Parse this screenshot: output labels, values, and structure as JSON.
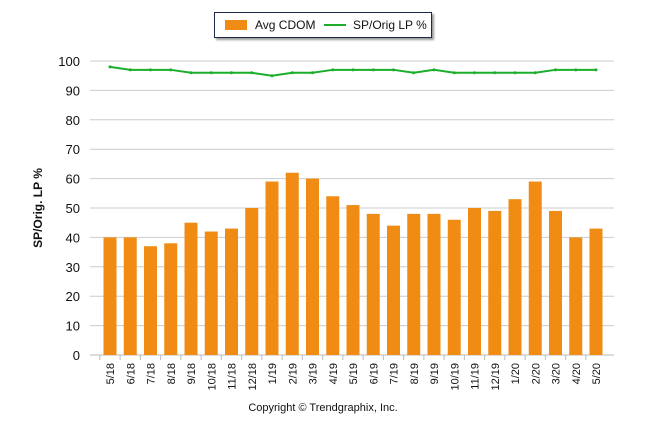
{
  "chart_data": {
    "type": "bar",
    "title": "",
    "xlabel": "",
    "ylabel": "SP/Orig. LP %",
    "ylim": [
      0,
      100
    ],
    "yticks": [
      0,
      10,
      20,
      30,
      40,
      50,
      60,
      70,
      80,
      90,
      100
    ],
    "grid": true,
    "legend_position": "top",
    "categories": [
      "5/18",
      "6/18",
      "7/18",
      "8/18",
      "9/18",
      "10/18",
      "11/18",
      "12/18",
      "1/19",
      "2/19",
      "3/19",
      "4/19",
      "5/19",
      "6/19",
      "7/19",
      "8/19",
      "9/19",
      "10/19",
      "11/19",
      "12/19",
      "1/20",
      "2/20",
      "3/20",
      "4/20",
      "5/20"
    ],
    "series": [
      {
        "name": "Avg CDOM",
        "type": "bar",
        "color": "#f08c14",
        "values": [
          40,
          40,
          37,
          38,
          45,
          42,
          43,
          50,
          59,
          62,
          60,
          54,
          51,
          48,
          44,
          48,
          48,
          46,
          50,
          49,
          53,
          59,
          49,
          40,
          43
        ]
      },
      {
        "name": "SP/Orig LP %",
        "type": "line",
        "color": "#1aae2a",
        "values": [
          98,
          97,
          97,
          97,
          96,
          96,
          96,
          96,
          95,
          96,
          96,
          97,
          97,
          97,
          97,
          96,
          97,
          96,
          96,
          96,
          96,
          96,
          97,
          97,
          97
        ]
      }
    ]
  },
  "footer": {
    "copyright": "Copyright © Trendgraphix, Inc."
  }
}
